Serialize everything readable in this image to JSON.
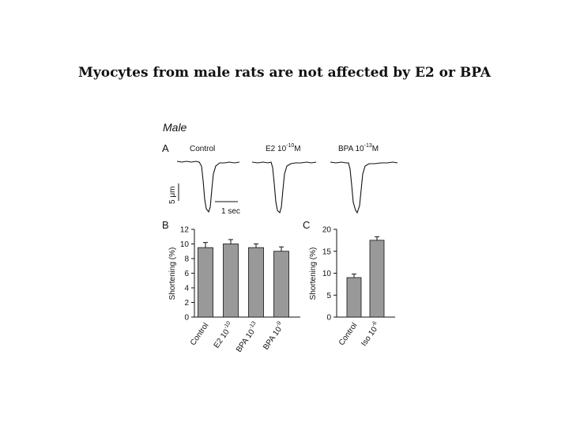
{
  "slide": {
    "title": "Myocytes from male rats are not affected by E2 or BPA"
  },
  "figure": {
    "group_label": "Male",
    "panel_a": {
      "letter": "A",
      "traces": [
        {
          "label": "Control",
          "base": "",
          "exp": "",
          "unit": ""
        },
        {
          "label": "E2 10",
          "base": "10",
          "exp": "-10",
          "unit": "M"
        },
        {
          "label": "BPA 10",
          "base": "10",
          "exp": "-13",
          "unit": "M"
        }
      ],
      "scale_y": "5 μm",
      "scale_x": "1 sec"
    },
    "panel_b_letter": "B",
    "panel_c_letter": "C"
  },
  "colors": {
    "bar_fill": "#999999",
    "ink": "#111111",
    "background": "#ffffff"
  },
  "chart_data": [
    {
      "type": "bar",
      "panel": "B",
      "ylabel": "Shortening (%)",
      "ylim": [
        0,
        12
      ],
      "yticks": [
        0,
        2,
        4,
        6,
        8,
        10,
        12
      ],
      "categories": [
        {
          "main": "Control",
          "exp": ""
        },
        {
          "main": "E2 10",
          "exp": "-10"
        },
        {
          "main": "BPA 10",
          "exp": "-13"
        },
        {
          "main": "BPA 10",
          "exp": "-9"
        }
      ],
      "values": [
        9.5,
        10.0,
        9.5,
        9.0
      ],
      "errors": [
        0.7,
        0.6,
        0.5,
        0.6
      ]
    },
    {
      "type": "bar",
      "panel": "C",
      "ylabel": "Shortening (%)",
      "ylim": [
        0,
        20
      ],
      "yticks": [
        0,
        5,
        10,
        15,
        20
      ],
      "categories": [
        {
          "main": "Control",
          "exp": ""
        },
        {
          "main": "Iso 10",
          "exp": "-6"
        }
      ],
      "values": [
        9.0,
        17.5
      ],
      "errors": [
        0.8,
        0.8
      ]
    }
  ]
}
